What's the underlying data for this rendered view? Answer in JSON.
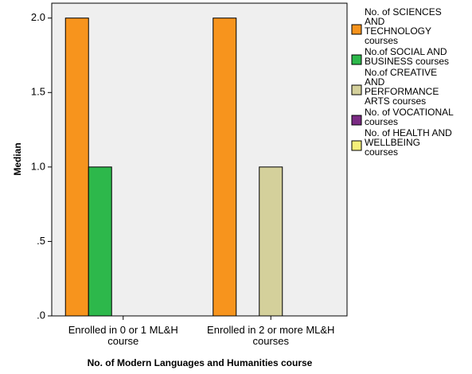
{
  "chart_data": {
    "type": "bar",
    "title": "",
    "xlabel": "No. of Modern Languages and Humanities course",
    "ylabel": "Median",
    "ylim": [
      0,
      2.1
    ],
    "yticks": [
      0,
      0.5,
      1.0,
      1.5,
      2.0
    ],
    "ytick_labels": [
      ".0",
      ".5",
      "1.0",
      "1.5",
      "2.0"
    ],
    "categories": [
      "Enrolled in 0 or 1 ML&H course",
      "Enrolled in 2 or more ML&H courses"
    ],
    "category_label_lines": [
      [
        "Enrolled in 0 or 1 ML&H",
        "course"
      ],
      [
        "Enrolled in 2 or more ML&H",
        "courses"
      ]
    ],
    "legend_position": "right",
    "grid": false,
    "plot_background": "#efefef",
    "series": [
      {
        "name": "No. of SCIENCES AND TECHNOLOGY courses",
        "legend_lines": [
          "No. of SCIENCES",
          "AND",
          "TECHNOLOGY",
          "courses"
        ],
        "color": "#f7941d",
        "values": [
          2,
          2
        ]
      },
      {
        "name": "No.of SOCIAL AND BUSINESS courses",
        "legend_lines": [
          "No.of SOCIAL AND",
          "BUSINESS courses"
        ],
        "color": "#2db84b",
        "values": [
          1,
          0
        ]
      },
      {
        "name": "No.of CREATIVE AND PERFORMANCE ARTS courses",
        "legend_lines": [
          "No.of CREATIVE",
          "AND",
          "PERFORMANCE",
          "ARTS courses"
        ],
        "color": "#d4d09b",
        "values": [
          0,
          1
        ]
      },
      {
        "name": "No. of VOCATIONAL courses",
        "legend_lines": [
          "No. of VOCATIONAL",
          "courses"
        ],
        "color": "#7b2b84",
        "values": [
          0,
          0
        ]
      },
      {
        "name": "No. of HEALTH AND WELLBEING courses",
        "legend_lines": [
          "No. of HEALTH AND",
          "WELLBEING",
          "courses"
        ],
        "color": "#f6f07a",
        "values": [
          0,
          0
        ]
      }
    ]
  }
}
